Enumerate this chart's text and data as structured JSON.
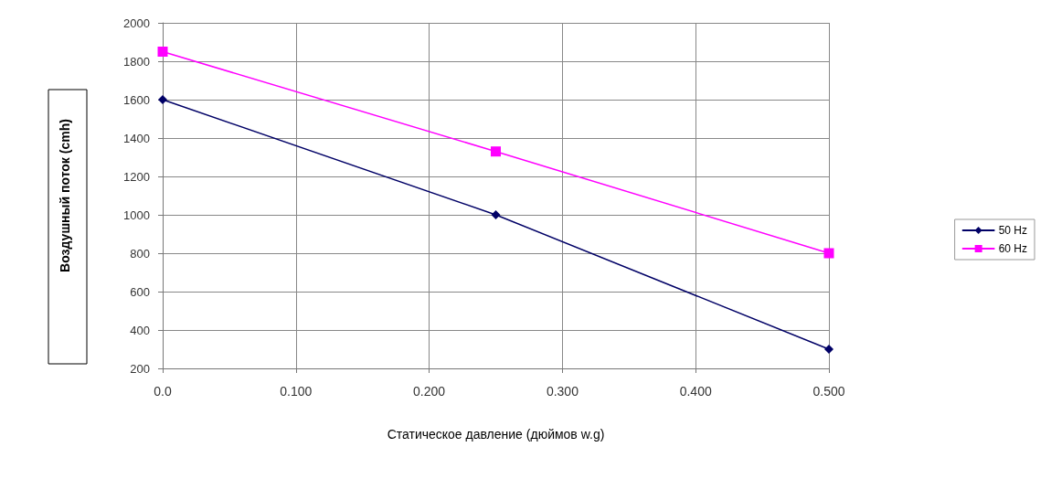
{
  "chart_data": {
    "type": "line",
    "xlabel": "Статическое давление (дюймов w.g)",
    "ylabel": "Воздушный поток (cmh)",
    "x": [
      0,
      0.25,
      0.5
    ],
    "series": [
      {
        "name": "50 Hz",
        "color": "#000066",
        "marker": "diamond",
        "values": [
          1600,
          1000,
          300
        ]
      },
      {
        "name": "60 Hz",
        "color": "#ff00ff",
        "marker": "square",
        "values": [
          1850,
          1330,
          800
        ]
      }
    ],
    "xlim": [
      0,
      0.5
    ],
    "xticks": [
      {
        "value": 0,
        "label": "0.0"
      },
      {
        "value": 0.1,
        "label": "0.100"
      },
      {
        "value": 0.2,
        "label": "0.200"
      },
      {
        "value": 0.3,
        "label": "0.300"
      },
      {
        "value": 0.4,
        "label": "0.400"
      },
      {
        "value": 0.5,
        "label": "0.500"
      }
    ],
    "ylim": [
      200,
      2000
    ],
    "yticks": [
      200,
      400,
      600,
      800,
      1000,
      1200,
      1400,
      1600,
      1800,
      2000
    ],
    "grid": true,
    "legend": "right",
    "line_style": "solid"
  }
}
